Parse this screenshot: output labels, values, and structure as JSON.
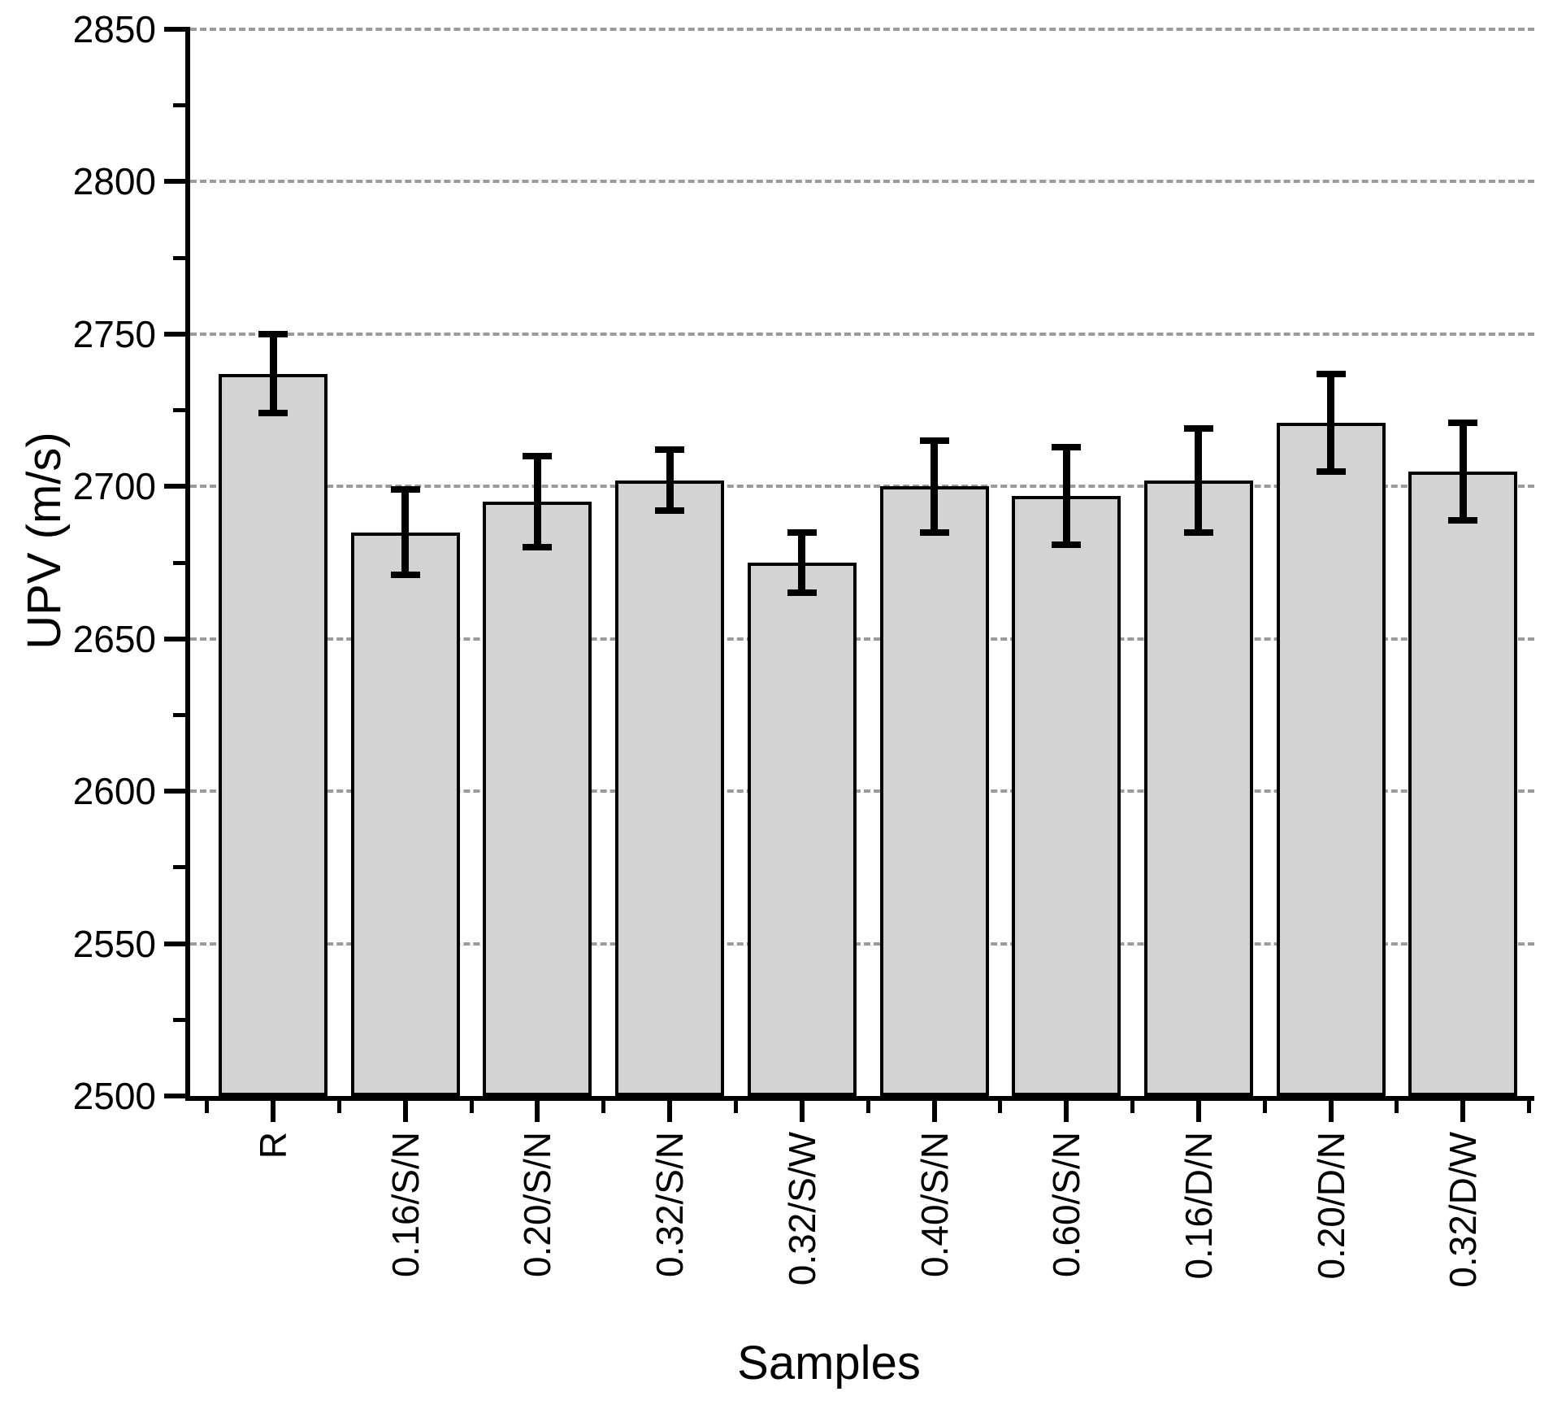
{
  "chart_data": {
    "type": "bar",
    "title": "",
    "xlabel": "Samples",
    "ylabel": "UPV (m/s)",
    "categories": [
      "R",
      "0.16/S/N",
      "0.20/S/N",
      "0.32/S/N",
      "0.32/S/W",
      "0.40/S/N",
      "0.60/S/N",
      "0.16/D/N",
      "0.20/D/N",
      "0.32/D/W"
    ],
    "values": [
      2737,
      2685,
      2695,
      2702,
      2675,
      2700,
      2697,
      2702,
      2721,
      2705
    ],
    "error_bars": [
      13,
      14,
      15,
      10,
      10,
      15,
      16,
      17,
      16,
      16
    ],
    "ylim": [
      2500,
      2850
    ],
    "y_major_ticks": [
      2500,
      2550,
      2600,
      2650,
      2700,
      2750,
      2800,
      2850
    ],
    "y_minor_step": 25,
    "grid": "horizontal dashed lines at major y ticks, drawn behind bars",
    "legend": "none",
    "colors": {
      "bar_fill": "#d3d3d3",
      "bar_border": "#000000",
      "grid_color": "#9b9b9b",
      "axis_color": "#000000",
      "background": "#ffffff"
    }
  }
}
